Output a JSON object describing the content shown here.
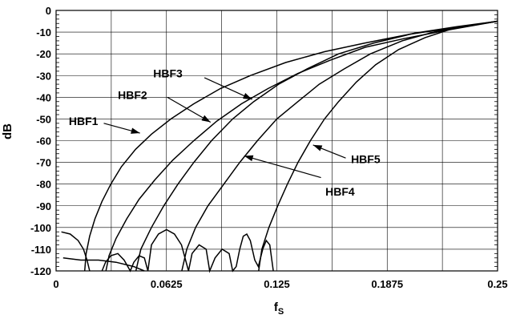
{
  "chart_data": {
    "type": "line",
    "title": "",
    "xlabel": "fS",
    "ylabel": "dB",
    "xlim": [
      0,
      0.25
    ],
    "ylim": [
      -120,
      0
    ],
    "grid": true,
    "x_ticks": [
      "0",
      "0.0625",
      "0.125",
      "0.1875",
      "0.25"
    ],
    "y_ticks": [
      "0",
      "-10",
      "-20",
      "-30",
      "-40",
      "-50",
      "-60",
      "-70",
      "-80",
      "-90",
      "-100",
      "-110",
      "-120"
    ],
    "series": [
      {
        "name": "HBF1",
        "points": [
          [
            0.0162,
            -120
          ],
          [
            0.017,
            -112
          ],
          [
            0.019,
            -104
          ],
          [
            0.022,
            -96
          ],
          [
            0.026,
            -88
          ],
          [
            0.031,
            -80
          ],
          [
            0.037,
            -72
          ],
          [
            0.045,
            -64
          ],
          [
            0.054,
            -57
          ],
          [
            0.065,
            -50
          ],
          [
            0.078,
            -43
          ],
          [
            0.093,
            -36
          ],
          [
            0.11,
            -30
          ],
          [
            0.13,
            -24
          ],
          [
            0.152,
            -19
          ],
          [
            0.175,
            -15
          ],
          [
            0.2,
            -11
          ],
          [
            0.225,
            -8
          ],
          [
            0.25,
            -5
          ]
        ]
      },
      {
        "name": "HBF2",
        "points": [
          [
            0.0282,
            -120
          ],
          [
            0.03,
            -113
          ],
          [
            0.034,
            -105
          ],
          [
            0.04,
            -96
          ],
          [
            0.047,
            -87
          ],
          [
            0.056,
            -78
          ],
          [
            0.066,
            -69
          ],
          [
            0.078,
            -60
          ],
          [
            0.091,
            -51
          ],
          [
            0.105,
            -43
          ],
          [
            0.12,
            -36
          ],
          [
            0.137,
            -29
          ],
          [
            0.155,
            -23
          ],
          [
            0.175,
            -17
          ],
          [
            0.197,
            -13
          ],
          [
            0.222,
            -9
          ],
          [
            0.25,
            -5
          ]
        ]
      },
      {
        "name": "HBF3",
        "points": [
          [
            0.0452,
            -120
          ],
          [
            0.048,
            -110
          ],
          [
            0.054,
            -100
          ],
          [
            0.061,
            -90
          ],
          [
            0.069,
            -80
          ],
          [
            0.078,
            -70
          ],
          [
            0.088,
            -60
          ],
          [
            0.1,
            -50
          ],
          [
            0.112,
            -42
          ],
          [
            0.126,
            -34
          ],
          [
            0.142,
            -27
          ],
          [
            0.16,
            -20
          ],
          [
            0.18,
            -15
          ],
          [
            0.203,
            -10.5
          ],
          [
            0.227,
            -7.5
          ],
          [
            0.25,
            -5
          ]
        ]
      },
      {
        "name": "HBF4",
        "points": [
          [
            0.0712,
            -120
          ],
          [
            0.074,
            -110
          ],
          [
            0.079,
            -100
          ],
          [
            0.086,
            -90
          ],
          [
            0.095,
            -80
          ],
          [
            0.104,
            -70
          ],
          [
            0.114,
            -60
          ],
          [
            0.125,
            -50
          ],
          [
            0.137,
            -42
          ],
          [
            0.149,
            -34
          ],
          [
            0.163,
            -27
          ],
          [
            0.178,
            -20
          ],
          [
            0.196,
            -14
          ],
          [
            0.216,
            -9.5
          ],
          [
            0.234,
            -7
          ],
          [
            0.25,
            -5
          ]
        ]
      },
      {
        "name": "HBF5",
        "points": [
          [
            0.1147,
            -120
          ],
          [
            0.1165,
            -110
          ],
          [
            0.1205,
            -100
          ],
          [
            0.1255,
            -90
          ],
          [
            0.131,
            -80
          ],
          [
            0.137,
            -70
          ],
          [
            0.144,
            -60
          ],
          [
            0.152,
            -50
          ],
          [
            0.16,
            -42
          ],
          [
            0.17,
            -33
          ],
          [
            0.181,
            -25
          ],
          [
            0.194,
            -18
          ],
          [
            0.209,
            -12.5
          ],
          [
            0.224,
            -8.5
          ],
          [
            0.238,
            -6.5
          ],
          [
            0.25,
            -5
          ]
        ]
      }
    ],
    "stopband_ripple": [
      {
        "points": [
          [
            0.003,
            -102
          ],
          [
            0.008,
            -103
          ],
          [
            0.0125,
            -106
          ],
          [
            0.0155,
            -110
          ],
          [
            0.0175,
            -115
          ],
          [
            0.019,
            -120
          ]
        ]
      },
      {
        "points": [
          [
            0.004,
            -114
          ],
          [
            0.014,
            -115
          ],
          [
            0.024,
            -115
          ],
          [
            0.034,
            -116
          ],
          [
            0.044,
            -118
          ],
          [
            0.05,
            -120
          ]
        ]
      },
      {
        "points": [
          [
            0.026,
            -120
          ],
          [
            0.028,
            -116
          ],
          [
            0.031,
            -113
          ],
          [
            0.035,
            -112
          ],
          [
            0.0385,
            -115
          ],
          [
            0.042,
            -120
          ],
          [
            0.044,
            -116
          ],
          [
            0.047,
            -113
          ],
          [
            0.05,
            -114
          ],
          [
            0.052,
            -120
          ],
          [
            0.054,
            -108
          ],
          [
            0.058,
            -103
          ],
          [
            0.0625,
            -101
          ],
          [
            0.067,
            -103
          ],
          [
            0.071,
            -108
          ],
          [
            0.073,
            -114
          ],
          [
            0.075,
            -120
          ],
          [
            0.077,
            -112
          ],
          [
            0.081,
            -108
          ],
          [
            0.085,
            -110
          ],
          [
            0.087,
            -120
          ],
          [
            0.09,
            -114
          ],
          [
            0.094,
            -110
          ],
          [
            0.098,
            -112
          ],
          [
            0.1,
            -120
          ],
          [
            0.102,
            -118
          ],
          [
            0.104,
            -110
          ],
          [
            0.106,
            -104
          ],
          [
            0.108,
            -103
          ],
          [
            0.11,
            -106
          ],
          [
            0.1125,
            -115
          ],
          [
            0.1145,
            -118
          ],
          [
            0.117,
            -110
          ],
          [
            0.119,
            -106
          ],
          [
            0.121,
            -108
          ],
          [
            0.122,
            -114
          ],
          [
            0.123,
            -120
          ]
        ]
      }
    ],
    "annotations": [
      {
        "label": "HBF1",
        "x": 0.0072,
        "y": -51,
        "arrow_from": [
          0.027,
          -52
        ],
        "arrow_to": [
          0.0475,
          -56.5
        ]
      },
      {
        "label": "HBF2",
        "x": 0.035,
        "y": -39,
        "arrow_from": [
          0.063,
          -40
        ],
        "arrow_to": [
          0.0875,
          -51.5
        ]
      },
      {
        "label": "HBF3",
        "x": 0.055,
        "y": -29,
        "arrow_from": [
          0.084,
          -31
        ],
        "arrow_to": [
          0.111,
          -41
        ]
      },
      {
        "label": "HBF4",
        "x": 0.1525,
        "y": -83.5,
        "arrow_from": [
          0.15,
          -77
        ],
        "arrow_to": [
          0.1065,
          -67
        ]
      },
      {
        "label": "HBF5",
        "x": 0.167,
        "y": -68.5,
        "arrow_from": [
          0.164,
          -68
        ],
        "arrow_to": [
          0.1455,
          -62
        ]
      }
    ]
  }
}
